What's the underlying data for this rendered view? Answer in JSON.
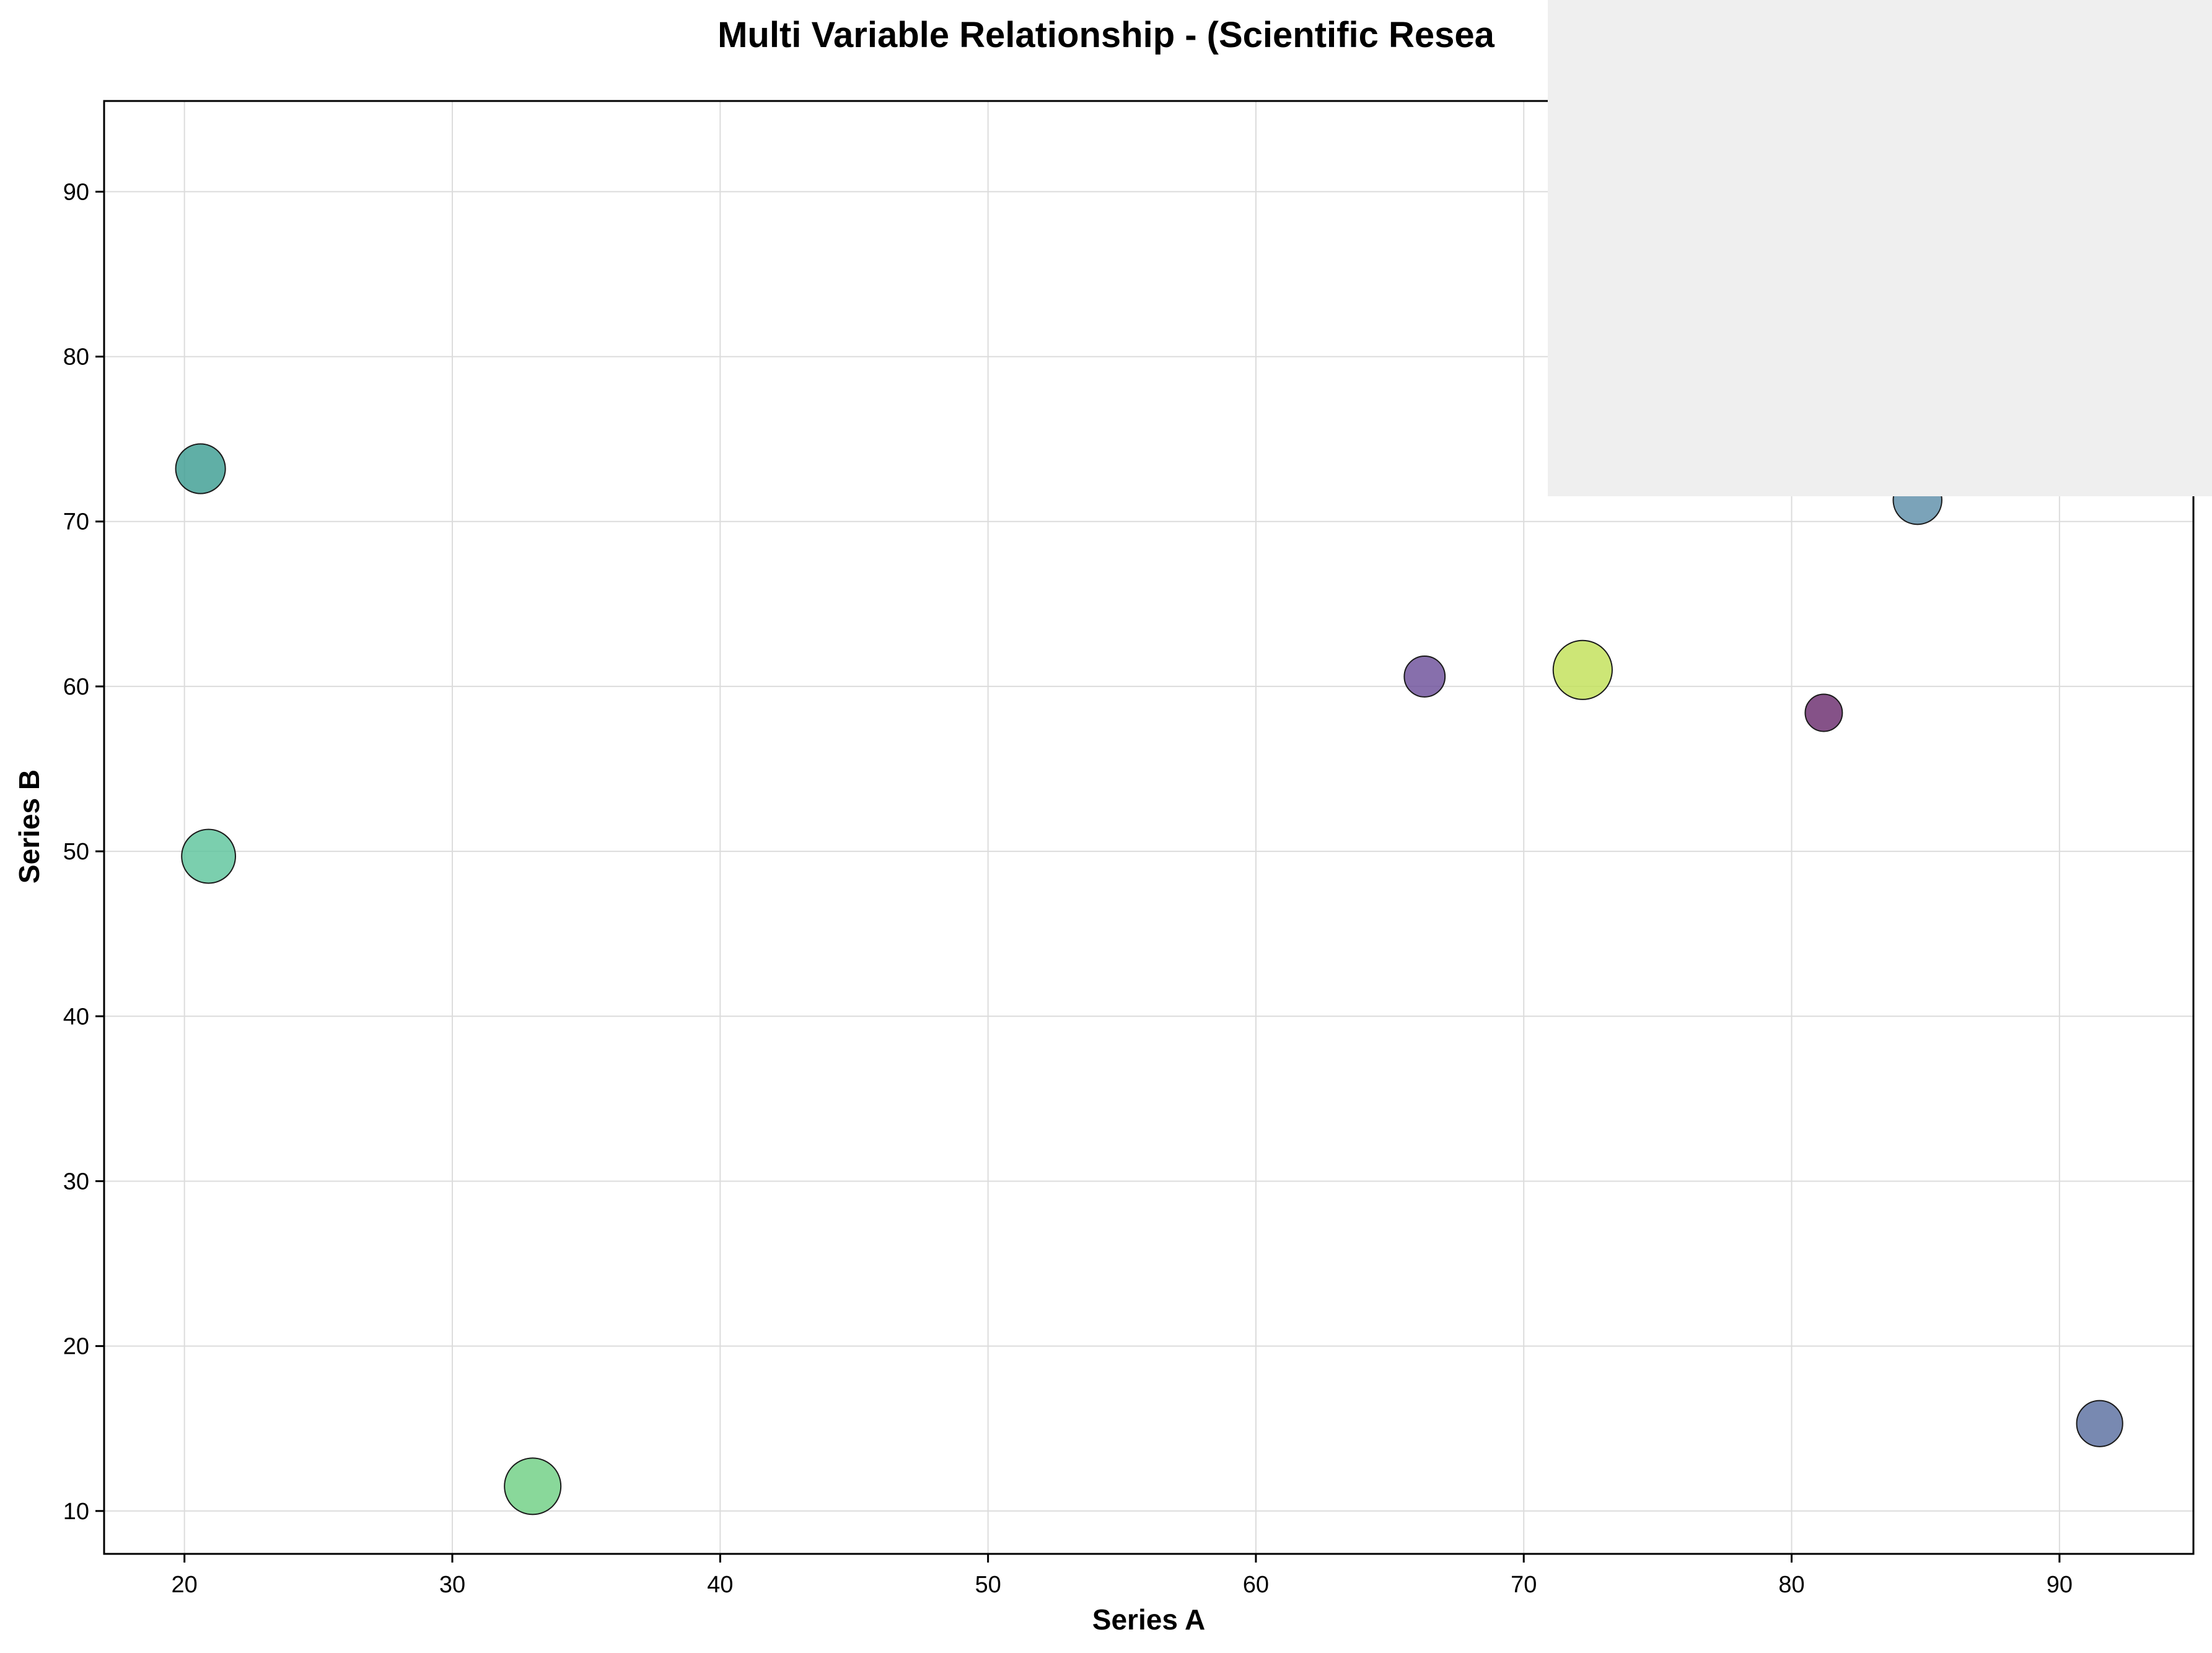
{
  "chart_data": {
    "type": "scatter",
    "title": "Multi Variable Relationship - (Scientific Resea",
    "xlabel": "Series A",
    "ylabel": "Series B",
    "xlim": [
      17,
      95
    ],
    "ylim": [
      7.4,
      95.5
    ],
    "xticks": [
      20,
      30,
      40,
      50,
      60,
      70,
      80,
      90
    ],
    "yticks": [
      10,
      20,
      30,
      40,
      50,
      60,
      70,
      80,
      90
    ],
    "grid": true,
    "points": [
      {
        "x": 20.6,
        "y": 73.2,
        "size": 0.62,
        "color": "#3d9e93"
      },
      {
        "x": 20.9,
        "y": 49.7,
        "size": 0.7,
        "color": "#5ec59c"
      },
      {
        "x": 33.0,
        "y": 11.5,
        "size": 0.75,
        "color": "#6fcf84"
      },
      {
        "x": 66.3,
        "y": 60.6,
        "size": 0.45,
        "color": "#6c4f9a"
      },
      {
        "x": 72.2,
        "y": 61.0,
        "size": 0.8,
        "color": "#c2e058"
      },
      {
        "x": 81.2,
        "y": 58.4,
        "size": 0.38,
        "color": "#6a2c6e"
      },
      {
        "x": 84.7,
        "y": 71.3,
        "size": 0.6,
        "color": "#5e8faa"
      },
      {
        "x": 91.5,
        "y": 15.3,
        "size": 0.55,
        "color": "#5a6fa0"
      }
    ]
  }
}
